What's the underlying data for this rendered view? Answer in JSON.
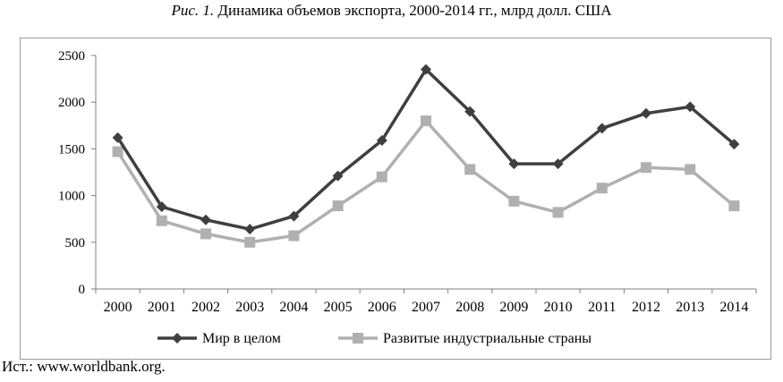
{
  "caption": {
    "figure_label": "Рис. 1.",
    "title": "Динамика объемов экспорта, 2000-2014 гг., млрд долл. США"
  },
  "source": "Ист.: www.worldbank.org.",
  "colors": {
    "world": "#3f3f3f",
    "developed": "#b0b0b0",
    "axis": "#808080"
  },
  "chart_data": {
    "type": "line",
    "title": "Динамика объемов экспорта, 2000-2014 гг., млрд долл. США",
    "xlabel": "",
    "ylabel": "",
    "x": [
      "2000",
      "2001",
      "2002",
      "2003",
      "2004",
      "2005",
      "2006",
      "2007",
      "2008",
      "2009",
      "2010",
      "2011",
      "2012",
      "2013",
      "2014"
    ],
    "ylim": [
      0,
      2500
    ],
    "yticks": [
      0,
      500,
      1000,
      1500,
      2000,
      2500
    ],
    "grid": false,
    "legend": "bottom",
    "series": [
      {
        "name": "Мир в целом",
        "marker": "diamond",
        "color": "#3f3f3f",
        "values": [
          1620,
          880,
          740,
          640,
          780,
          1210,
          1590,
          2350,
          1900,
          1340,
          1340,
          1720,
          1880,
          1950,
          1550
        ]
      },
      {
        "name": "Развитые индустриальные страны",
        "marker": "square",
        "color": "#b0b0b0",
        "values": [
          1470,
          730,
          590,
          500,
          570,
          890,
          1200,
          1800,
          1280,
          940,
          820,
          1080,
          1300,
          1280,
          890
        ]
      }
    ]
  }
}
